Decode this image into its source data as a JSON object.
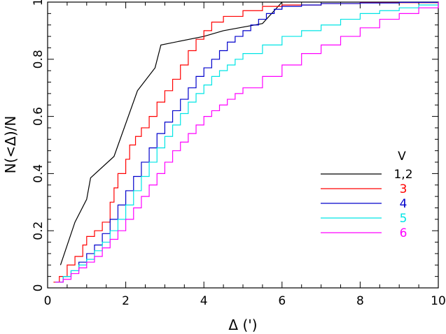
{
  "chart_data": {
    "type": "line",
    "title": "",
    "xlabel": "Δ (')",
    "ylabel": "N(<Δ)/N",
    "xlim": [
      0,
      10
    ],
    "ylim": [
      0,
      1
    ],
    "x_ticks": [
      "0",
      "2",
      "4",
      "6",
      "8",
      "10"
    ],
    "y_ticks": [
      "0",
      "0.2",
      "0.4",
      "0.6",
      "0.8",
      "1"
    ],
    "grid": false,
    "legend": {
      "title": "V",
      "placement": "right"
    },
    "series": [
      {
        "name": "1,2",
        "color": "#000000",
        "step": false,
        "x": [
          0.33,
          0.7,
          1.0,
          1.1,
          1.7,
          2.3,
          2.75,
          2.9,
          4.0,
          4.5,
          5.5,
          6.0
        ],
        "y": [
          0.08,
          0.23,
          0.31,
          0.385,
          0.46,
          0.69,
          0.77,
          0.85,
          0.88,
          0.9,
          0.925,
          1.0
        ]
      },
      {
        "name": "3",
        "color": "#ff0000",
        "step": true,
        "x": [
          0.15,
          0.3,
          0.5,
          0.7,
          0.9,
          1.0,
          1.2,
          1.4,
          1.6,
          1.7,
          1.8,
          2.0,
          2.1,
          2.25,
          2.4,
          2.6,
          2.8,
          3.0,
          3.2,
          3.4,
          3.6,
          3.8,
          4.0,
          4.2,
          4.5,
          5.0,
          5.5,
          6.0,
          7.0,
          8.0,
          10.0
        ],
        "y": [
          0.02,
          0.04,
          0.08,
          0.11,
          0.15,
          0.18,
          0.2,
          0.23,
          0.3,
          0.35,
          0.4,
          0.45,
          0.5,
          0.53,
          0.56,
          0.6,
          0.65,
          0.69,
          0.73,
          0.78,
          0.83,
          0.87,
          0.9,
          0.93,
          0.95,
          0.97,
          0.985,
          0.99,
          0.995,
          0.998,
          1.0
        ]
      },
      {
        "name": "4",
        "color": "#0000cc",
        "step": true,
        "x": [
          0.2,
          0.4,
          0.6,
          0.8,
          1.0,
          1.2,
          1.4,
          1.6,
          1.8,
          2.0,
          2.2,
          2.4,
          2.6,
          2.8,
          3.0,
          3.2,
          3.4,
          3.6,
          3.8,
          4.0,
          4.2,
          4.4,
          4.6,
          4.8,
          5.0,
          5.2,
          5.4,
          5.6,
          5.8,
          6.0,
          6.5,
          7.0,
          8.0,
          9.0,
          10.0
        ],
        "y": [
          0.02,
          0.04,
          0.06,
          0.09,
          0.12,
          0.15,
          0.19,
          0.24,
          0.29,
          0.34,
          0.39,
          0.44,
          0.49,
          0.54,
          0.58,
          0.62,
          0.66,
          0.7,
          0.74,
          0.77,
          0.8,
          0.83,
          0.86,
          0.88,
          0.9,
          0.92,
          0.94,
          0.96,
          0.975,
          0.985,
          0.99,
          0.995,
          0.997,
          0.999,
          1.0
        ]
      },
      {
        "name": "5",
        "color": "#00e5e5",
        "step": true,
        "x": [
          0.2,
          0.4,
          0.6,
          0.8,
          1.0,
          1.2,
          1.4,
          1.6,
          1.8,
          2.0,
          2.2,
          2.4,
          2.6,
          2.8,
          3.0,
          3.2,
          3.4,
          3.6,
          3.8,
          4.0,
          4.2,
          4.4,
          4.6,
          4.8,
          5.0,
          5.5,
          6.0,
          6.5,
          7.0,
          7.5,
          8.0,
          8.5,
          9.0,
          9.5,
          10.0
        ],
        "y": [
          0.02,
          0.04,
          0.06,
          0.08,
          0.1,
          0.13,
          0.16,
          0.2,
          0.24,
          0.29,
          0.34,
          0.39,
          0.44,
          0.49,
          0.53,
          0.57,
          0.61,
          0.65,
          0.68,
          0.71,
          0.74,
          0.76,
          0.78,
          0.8,
          0.82,
          0.85,
          0.88,
          0.9,
          0.92,
          0.94,
          0.96,
          0.97,
          0.98,
          0.99,
          1.0
        ]
      },
      {
        "name": "6",
        "color": "#ff00ff",
        "step": true,
        "x": [
          0.2,
          0.4,
          0.6,
          0.8,
          1.0,
          1.2,
          1.4,
          1.6,
          1.8,
          2.0,
          2.2,
          2.4,
          2.6,
          2.8,
          3.0,
          3.2,
          3.4,
          3.6,
          3.8,
          4.0,
          4.2,
          4.4,
          4.6,
          4.8,
          5.0,
          5.5,
          6.0,
          6.5,
          7.0,
          7.5,
          8.0,
          8.5,
          9.0,
          9.5,
          10.0
        ],
        "y": [
          0.02,
          0.03,
          0.05,
          0.07,
          0.09,
          0.11,
          0.14,
          0.17,
          0.2,
          0.24,
          0.28,
          0.32,
          0.36,
          0.4,
          0.44,
          0.48,
          0.51,
          0.54,
          0.57,
          0.6,
          0.62,
          0.64,
          0.66,
          0.68,
          0.7,
          0.74,
          0.78,
          0.82,
          0.85,
          0.88,
          0.91,
          0.94,
          0.96,
          0.98,
          1.0
        ]
      }
    ]
  }
}
